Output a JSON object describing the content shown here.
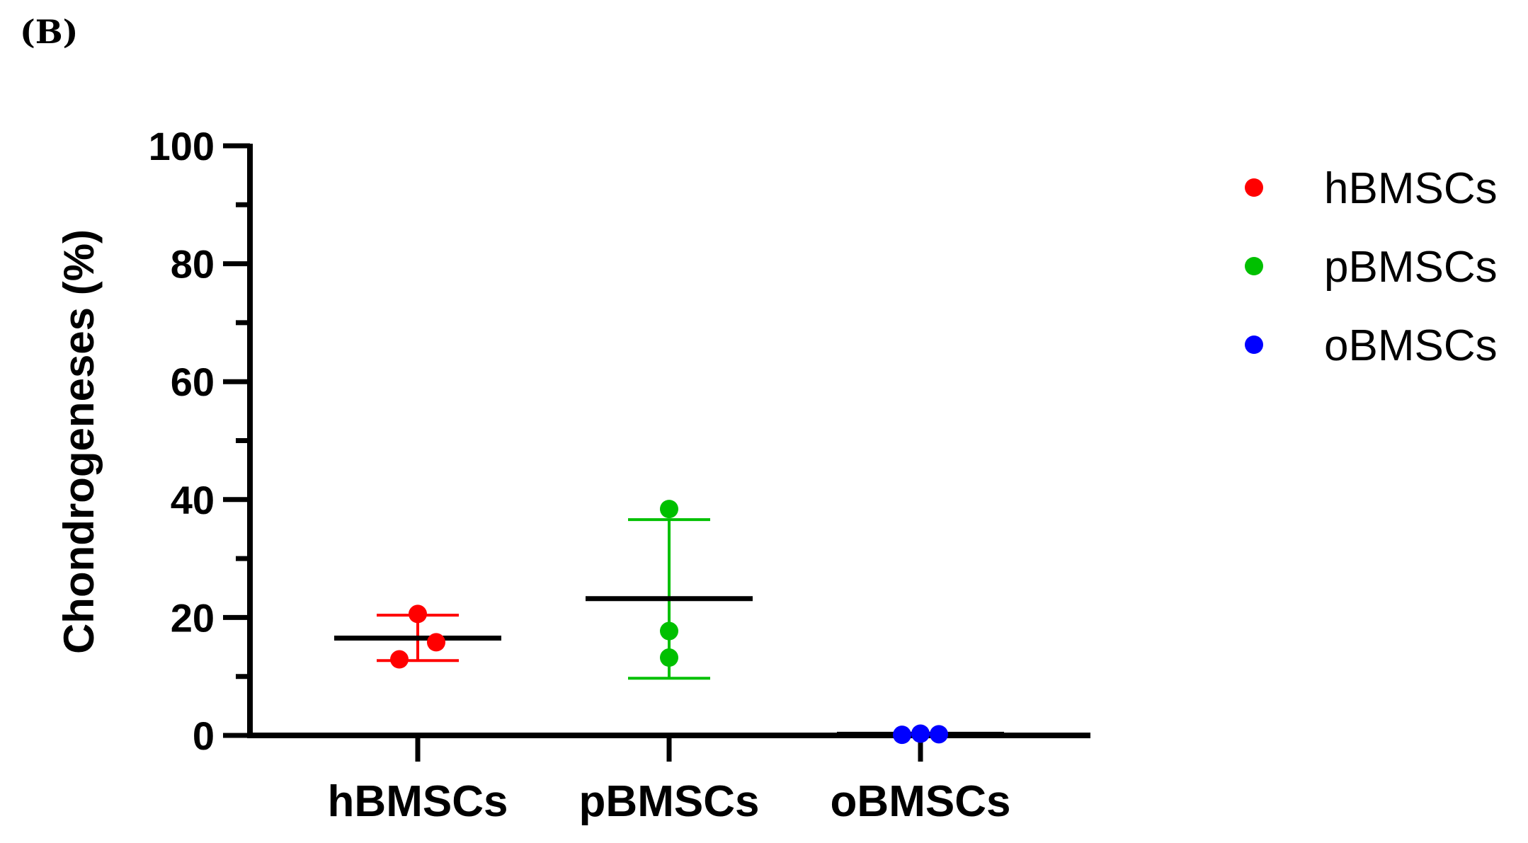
{
  "panel_label": "(B)",
  "chart_data": {
    "type": "scatter",
    "title": "",
    "ylabel": "Chondrogeneses (%)",
    "xlabel": "",
    "ylim": [
      0,
      100
    ],
    "yticks": [
      0,
      20,
      40,
      60,
      80,
      100
    ],
    "ytick_labels": [
      "0",
      "20",
      "40",
      "60",
      "80",
      "100"
    ],
    "categories": [
      "hBMSCs",
      "pBMSCs",
      "oBMSCs"
    ],
    "legend_position": "top-right",
    "series": [
      {
        "name": "hBMSCs",
        "color": "#ff0000",
        "points": [
          {
            "offset": 0,
            "y": 20.6
          },
          {
            "offset": 1,
            "y": 15.8
          },
          {
            "offset": -1,
            "y": 12.9
          }
        ],
        "mean": 16.5,
        "error_low": 12.7,
        "error_high": 20.4
      },
      {
        "name": "pBMSCs",
        "color": "#00c000",
        "points": [
          {
            "offset": 0,
            "y": 38.4
          },
          {
            "offset": 0,
            "y": 17.7
          },
          {
            "offset": 0,
            "y": 13.2
          }
        ],
        "mean": 23.2,
        "error_low": 9.7,
        "error_high": 36.6
      },
      {
        "name": "oBMSCs",
        "color": "#0000ff",
        "points": [
          {
            "offset": -1,
            "y": 0.1
          },
          {
            "offset": 0,
            "y": 0.3
          },
          {
            "offset": 1,
            "y": 0.2
          }
        ],
        "mean": 0.2,
        "error_low": 0.1,
        "error_high": 0.3
      }
    ]
  }
}
